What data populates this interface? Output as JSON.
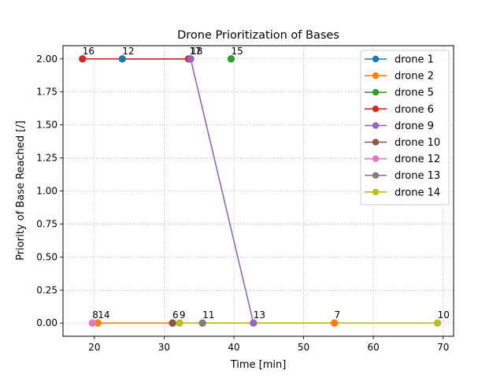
{
  "chart_data": {
    "type": "line",
    "title": "Drone Prioritization of Bases",
    "xlabel": "Time [min]",
    "ylabel": "Priority of Base Reached [/]",
    "xlim": [
      15.5,
      71.5
    ],
    "ylim": [
      -0.1,
      2.1
    ],
    "xticks": [
      20,
      30,
      40,
      50,
      60,
      70
    ],
    "yticks": [
      0.0,
      0.25,
      0.5,
      0.75,
      1.0,
      1.25,
      1.5,
      1.75,
      2.0
    ],
    "ytick_labels": [
      "0.00",
      "0.25",
      "0.50",
      "0.75",
      "1.00",
      "1.25",
      "1.50",
      "1.75",
      "2.00"
    ],
    "grid": true,
    "grid_style": "dotted",
    "legend_position": "top-right",
    "series": [
      {
        "name": "drone 1",
        "color": "#1f77b4",
        "points": [
          {
            "x": 24.0,
            "y": 2.0,
            "label": "12"
          },
          {
            "x": 33.6,
            "y": 2.0,
            "label": "17"
          }
        ]
      },
      {
        "name": "drone 2",
        "color": "#ff7f0e",
        "points": [
          {
            "x": 20.5,
            "y": 0.0,
            "label": "14"
          },
          {
            "x": 31.2,
            "y": 0.0,
            "label": "6"
          },
          {
            "x": 54.4,
            "y": 0.0,
            "label": "7"
          }
        ]
      },
      {
        "name": "drone 5",
        "color": "#2ca02c",
        "points": [
          {
            "x": 39.6,
            "y": 2.0,
            "label": "15"
          }
        ]
      },
      {
        "name": "drone 6",
        "color": "#d62728",
        "points": [
          {
            "x": 18.3,
            "y": 2.0,
            "label": "16"
          },
          {
            "x": 33.5,
            "y": 2.0,
            "label": ""
          }
        ]
      },
      {
        "name": "drone 9",
        "color": "#9467bd",
        "points": [
          {
            "x": 33.8,
            "y": 2.0,
            "label": "18"
          },
          {
            "x": 42.8,
            "y": 0.0,
            "label": "13"
          }
        ]
      },
      {
        "name": "drone 10",
        "color": "#8c564b",
        "points": [
          {
            "x": 31.2,
            "y": 0.0,
            "label": ""
          }
        ]
      },
      {
        "name": "drone 12",
        "color": "#e377c2",
        "points": [
          {
            "x": 19.7,
            "y": 0.0,
            "label": "8"
          }
        ]
      },
      {
        "name": "drone 13",
        "color": "#7f7f7f",
        "points": [
          {
            "x": 35.5,
            "y": 0.0,
            "label": "11"
          }
        ]
      },
      {
        "name": "drone 14",
        "color": "#bcbd22",
        "points": [
          {
            "x": 32.2,
            "y": 0.0,
            "label": "9"
          },
          {
            "x": 69.2,
            "y": 0.0,
            "label": "10"
          }
        ]
      }
    ]
  }
}
